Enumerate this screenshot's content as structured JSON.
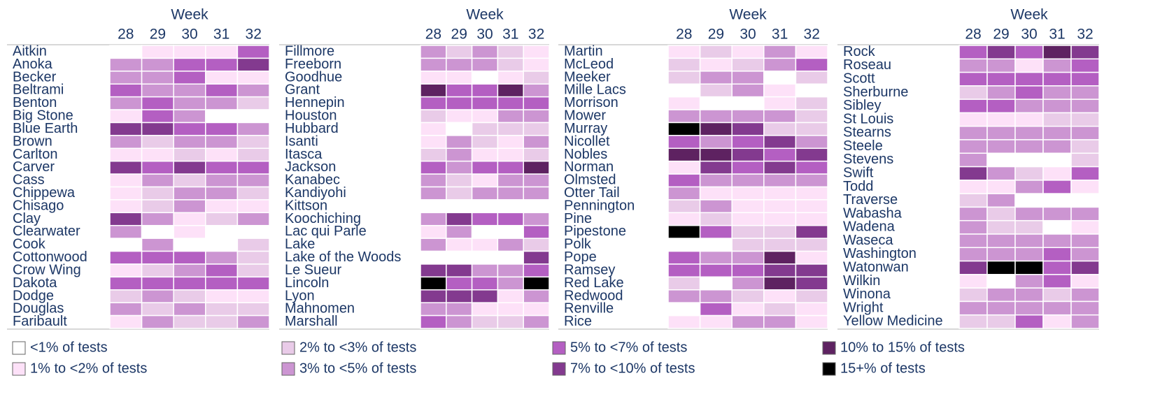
{
  "chart_data": [
    {
      "type": "heatmap",
      "xlabel": "Week",
      "categories": [
        28,
        29,
        30,
        31,
        32
      ],
      "rows": [
        "Aitkin",
        "Anoka",
        "Becker",
        "Beltrami",
        "Benton",
        "Big Stone",
        "Blue Earth",
        "Brown",
        "Carlton",
        "Carver",
        "Cass",
        "Chippewa",
        "Chisago",
        "Clay",
        "Clearwater",
        "Cook",
        "Cottonwood",
        "Crow Wing",
        "Dakota",
        "Dodge",
        "Douglas",
        "Faribault"
      ],
      "values": [
        [
          0,
          1,
          1,
          1,
          4
        ],
        [
          3,
          3,
          4,
          4,
          5
        ],
        [
          3,
          3,
          4,
          1,
          1
        ],
        [
          4,
          3,
          3,
          4,
          3
        ],
        [
          3,
          4,
          3,
          3,
          2
        ],
        [
          1,
          4,
          3,
          0,
          0
        ],
        [
          5,
          5,
          4,
          4,
          3
        ],
        [
          3,
          2,
          3,
          3,
          2
        ],
        [
          1,
          1,
          2,
          1,
          2
        ],
        [
          5,
          4,
          5,
          4,
          4
        ],
        [
          1,
          3,
          2,
          3,
          3
        ],
        [
          1,
          2,
          3,
          3,
          2
        ],
        [
          1,
          2,
          3,
          1,
          1
        ],
        [
          5,
          3,
          1,
          2,
          3
        ],
        [
          3,
          0,
          1,
          0,
          0
        ],
        [
          0,
          3,
          0,
          0,
          2
        ],
        [
          4,
          4,
          4,
          3,
          2
        ],
        [
          1,
          2,
          3,
          4,
          2
        ],
        [
          4,
          4,
          4,
          4,
          4
        ],
        [
          2,
          3,
          2,
          1,
          1
        ],
        [
          3,
          2,
          3,
          2,
          2
        ],
        [
          1,
          3,
          2,
          2,
          3
        ]
      ]
    },
    {
      "type": "heatmap",
      "xlabel": "Week",
      "categories": [
        28,
        29,
        30,
        31,
        32
      ],
      "rows": [
        "Fillmore",
        "Freeborn",
        "Goodhue",
        "Grant",
        "Hennepin",
        "Houston",
        "Hubbard",
        "Isanti",
        "Itasca",
        "Jackson",
        "Kanabec",
        "Kandiyohi",
        "Kittson",
        "Koochiching",
        "Lac qui Parle",
        "Lake",
        "Lake of the Woods",
        "Le Sueur",
        "Lincoln",
        "Lyon",
        "Mahnomen",
        "Marshall"
      ],
      "values": [
        [
          3,
          2,
          3,
          2,
          1
        ],
        [
          3,
          3,
          3,
          2,
          1
        ],
        [
          1,
          1,
          0,
          1,
          2
        ],
        [
          6,
          4,
          4,
          6,
          3
        ],
        [
          4,
          4,
          4,
          4,
          4
        ],
        [
          2,
          1,
          1,
          3,
          3
        ],
        [
          1,
          0,
          2,
          2,
          2
        ],
        [
          1,
          3,
          2,
          1,
          3
        ],
        [
          2,
          3,
          1,
          1,
          2
        ],
        [
          4,
          3,
          4,
          4,
          6
        ],
        [
          3,
          2,
          1,
          3,
          3
        ],
        [
          3,
          2,
          3,
          3,
          3
        ],
        [
          0,
          0,
          0,
          0,
          0
        ],
        [
          3,
          5,
          4,
          4,
          3
        ],
        [
          1,
          3,
          0,
          0,
          4
        ],
        [
          3,
          1,
          1,
          3,
          2
        ],
        [
          0,
          0,
          0,
          0,
          5
        ],
        [
          5,
          5,
          3,
          3,
          4
        ],
        [
          7,
          4,
          4,
          3,
          7
        ],
        [
          5,
          5,
          5,
          1,
          3
        ],
        [
          3,
          3,
          1,
          1,
          1
        ],
        [
          4,
          3,
          2,
          2,
          3
        ]
      ]
    },
    {
      "type": "heatmap",
      "xlabel": "Week",
      "categories": [
        28,
        29,
        30,
        31,
        32
      ],
      "rows": [
        "Martin",
        "McLeod",
        "Meeker",
        "Mille Lacs",
        "Morrison",
        "Mower",
        "Murray",
        "Nicollet",
        "Nobles",
        "Norman",
        "Olmsted",
        "Otter Tail",
        "Pennington",
        "Pine",
        "Pipestone",
        "Polk",
        "Pope",
        "Ramsey",
        "Red Lake",
        "Redwood",
        "Renville",
        "Rice"
      ],
      "values": [
        [
          1,
          2,
          1,
          3,
          1
        ],
        [
          2,
          1,
          2,
          3,
          4
        ],
        [
          2,
          3,
          3,
          0,
          2
        ],
        [
          0,
          2,
          3,
          1,
          0
        ],
        [
          1,
          0,
          0,
          1,
          2
        ],
        [
          3,
          3,
          3,
          3,
          2
        ],
        [
          7,
          6,
          5,
          2,
          2
        ],
        [
          4,
          3,
          4,
          5,
          3
        ],
        [
          6,
          6,
          5,
          4,
          5
        ],
        [
          1,
          5,
          4,
          5,
          4
        ],
        [
          4,
          3,
          3,
          3,
          3
        ],
        [
          3,
          1,
          1,
          1,
          1
        ],
        [
          2,
          3,
          1,
          1,
          1
        ],
        [
          1,
          2,
          1,
          1,
          1
        ],
        [
          7,
          4,
          2,
          2,
          5
        ],
        [
          0,
          0,
          2,
          2,
          2
        ],
        [
          4,
          3,
          3,
          6,
          1
        ],
        [
          4,
          4,
          4,
          5,
          5
        ],
        [
          2,
          0,
          3,
          6,
          5
        ],
        [
          3,
          3,
          2,
          1,
          2
        ],
        [
          0,
          4,
          1,
          2,
          1
        ],
        [
          1,
          1,
          3,
          3,
          1
        ]
      ]
    },
    {
      "type": "heatmap",
      "xlabel": "Week",
      "categories": [
        28,
        29,
        30,
        31,
        32
      ],
      "rows": [
        "Rock",
        "Roseau",
        "Scott",
        "Sherburne",
        "Sibley",
        "St Louis",
        "Stearns",
        "Steele",
        "Stevens",
        "Swift",
        "Todd",
        "Traverse",
        "Wabasha",
        "Wadena",
        "Waseca",
        "Washington",
        "Watonwan",
        "Wilkin",
        "Winona",
        "Wright",
        "Yellow Medicine"
      ],
      "values": [
        [
          4,
          5,
          4,
          6,
          5
        ],
        [
          3,
          3,
          1,
          3,
          4
        ],
        [
          4,
          4,
          4,
          4,
          4
        ],
        [
          2,
          3,
          4,
          3,
          3
        ],
        [
          4,
          4,
          3,
          3,
          3
        ],
        [
          1,
          1,
          1,
          2,
          2
        ],
        [
          3,
          3,
          3,
          3,
          3
        ],
        [
          3,
          3,
          3,
          3,
          2
        ],
        [
          3,
          0,
          0,
          0,
          2
        ],
        [
          5,
          3,
          2,
          1,
          4
        ],
        [
          1,
          1,
          3,
          4,
          1
        ],
        [
          2,
          3,
          0,
          0,
          0
        ],
        [
          3,
          2,
          3,
          3,
          3
        ],
        [
          3,
          2,
          2,
          0,
          1
        ],
        [
          3,
          3,
          3,
          3,
          3
        ],
        [
          3,
          3,
          3,
          4,
          3
        ],
        [
          5,
          7,
          7,
          4,
          5
        ],
        [
          1,
          0,
          3,
          4,
          1
        ],
        [
          2,
          3,
          3,
          2,
          3
        ],
        [
          3,
          3,
          3,
          3,
          3
        ],
        [
          2,
          2,
          4,
          1,
          3
        ]
      ]
    }
  ],
  "legend": [
    {
      "label": "<1% of tests",
      "color": "#ffffff"
    },
    {
      "label": "1% to <2% of tests",
      "color": "#fde1f8"
    },
    {
      "label": "2% to <3% of tests",
      "color": "#e9cbe8"
    },
    {
      "label": "3% to <5% of tests",
      "color": "#cc95d2"
    },
    {
      "label": "5% to <7% of tests",
      "color": "#b45fc2"
    },
    {
      "label": "7% to <10% of tests",
      "color": "#833a8f"
    },
    {
      "label": "10% to 15% of tests",
      "color": "#5e2261"
    },
    {
      "label": "15+% of tests",
      "color": "#000000"
    }
  ]
}
